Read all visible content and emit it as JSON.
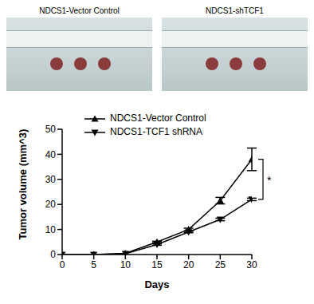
{
  "photos": [
    {
      "label": "NDCS1-Vector Control"
    },
    {
      "label": "NDCS1-shTCF1"
    }
  ],
  "chart_data": {
    "type": "line",
    "x": [
      0,
      5,
      10,
      15,
      20,
      25,
      30
    ],
    "xlim": [
      0,
      30
    ],
    "xticks": [
      0,
      5,
      10,
      15,
      20,
      25,
      30
    ],
    "ylim": [
      0,
      50
    ],
    "yticks": [
      0,
      10,
      20,
      30,
      40,
      50
    ],
    "x_label": "Days",
    "y_label": "Tumor volume (mm^3)",
    "legend": "top-left",
    "series": [
      {
        "name": "NDCS1-Vector Control",
        "color": "#000000",
        "marker": "triangle-up",
        "values": [
          0,
          0,
          0.5,
          5,
          10,
          21.5,
          38
        ],
        "errors": [
          0,
          0,
          0,
          0.3,
          0.5,
          1.3,
          4.5
        ]
      },
      {
        "name": "NDCS1-TCF1 shRNA",
        "color": "#000000",
        "marker": "triangle-down",
        "values": [
          0,
          0,
          0.3,
          4,
          9,
          14,
          22
        ],
        "errors": [
          0,
          0,
          0,
          0.3,
          0.3,
          0.5,
          0.5
        ]
      }
    ],
    "annotations": [
      {
        "text": "*",
        "x": 30,
        "y": [
          22,
          38
        ]
      }
    ]
  }
}
